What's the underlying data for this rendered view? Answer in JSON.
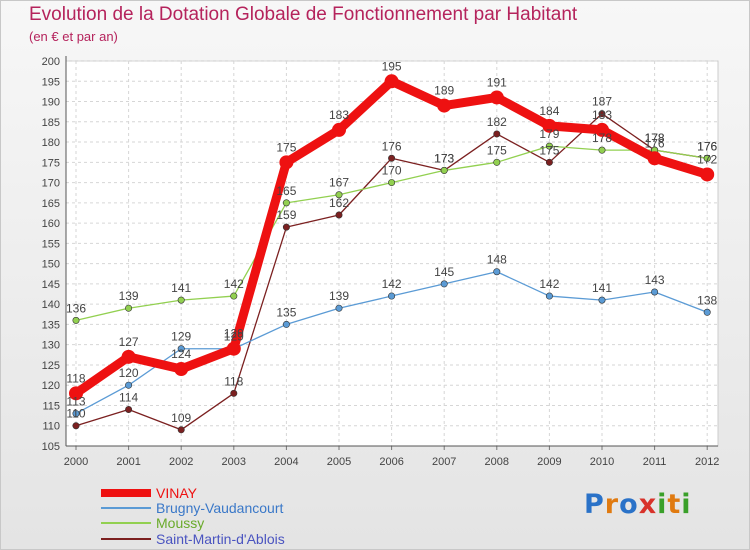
{
  "chart_data": {
    "type": "line",
    "title": "Evolution de la Dotation Globale de Fonctionnement par Habitant",
    "subtitle": "(en € et par an)",
    "xlabel": "",
    "ylabel": "",
    "ylim": [
      105,
      200
    ],
    "yticks": [
      105,
      110,
      115,
      120,
      125,
      130,
      135,
      140,
      145,
      150,
      155,
      160,
      165,
      170,
      175,
      180,
      185,
      190,
      195,
      200
    ],
    "grid": true,
    "categories": [
      "2000",
      "2001",
      "2002",
      "2003",
      "2004",
      "2005",
      "2006",
      "2007",
      "2008",
      "2009",
      "2010",
      "2011",
      "2012"
    ],
    "series": [
      {
        "name": "VINAY",
        "color": "#ee1111",
        "values": [
          118,
          127,
          124,
          129,
          175,
          183,
          195,
          189,
          191,
          184,
          183,
          176,
          172
        ]
      },
      {
        "name": "Brugny-Vaudancourt",
        "color": "#5b9bd5",
        "values": [
          113,
          120,
          129,
          129,
          135,
          139,
          142,
          145,
          148,
          142,
          141,
          143,
          138
        ]
      },
      {
        "name": "Moussy",
        "color": "#92d050",
        "values": [
          136,
          139,
          141,
          142,
          165,
          167,
          170,
          173,
          175,
          179,
          178,
          178,
          176
        ]
      },
      {
        "name": "Saint-Martin-d'Ablois",
        "color": "#7b2020",
        "values": [
          110,
          114,
          109,
          118,
          159,
          162,
          176,
          173,
          182,
          175,
          187,
          178,
          176
        ]
      }
    ]
  },
  "brand": {
    "text": "Proxiti"
  }
}
